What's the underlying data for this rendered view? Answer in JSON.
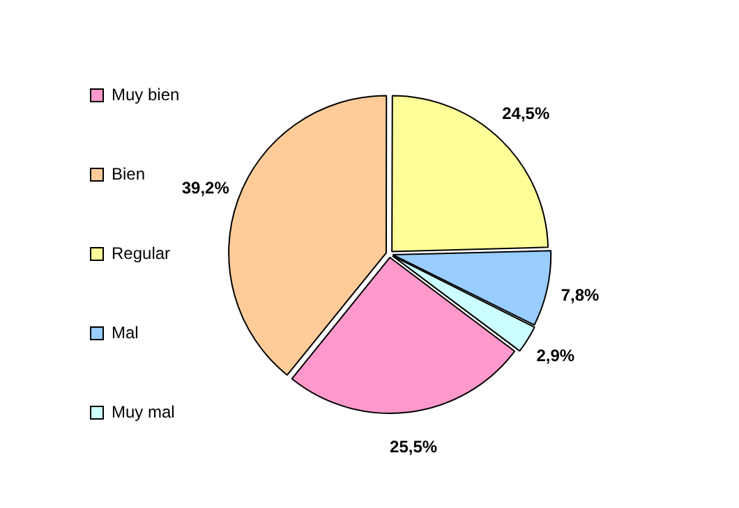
{
  "chart_data": {
    "type": "pie",
    "categories": [
      "Muy bien",
      "Bien",
      "Regular",
      "Mal",
      "Muy mal"
    ],
    "values": [
      25.5,
      39.2,
      24.5,
      7.8,
      2.9
    ],
    "colors": [
      "#ff99cc",
      "#ffcc99",
      "#ffff99",
      "#99ccff",
      "#ccffff"
    ],
    "value_labels": [
      "25,5%",
      "39,2%",
      "24,5%",
      "7,8%",
      "2,9%"
    ],
    "legend": "left"
  }
}
